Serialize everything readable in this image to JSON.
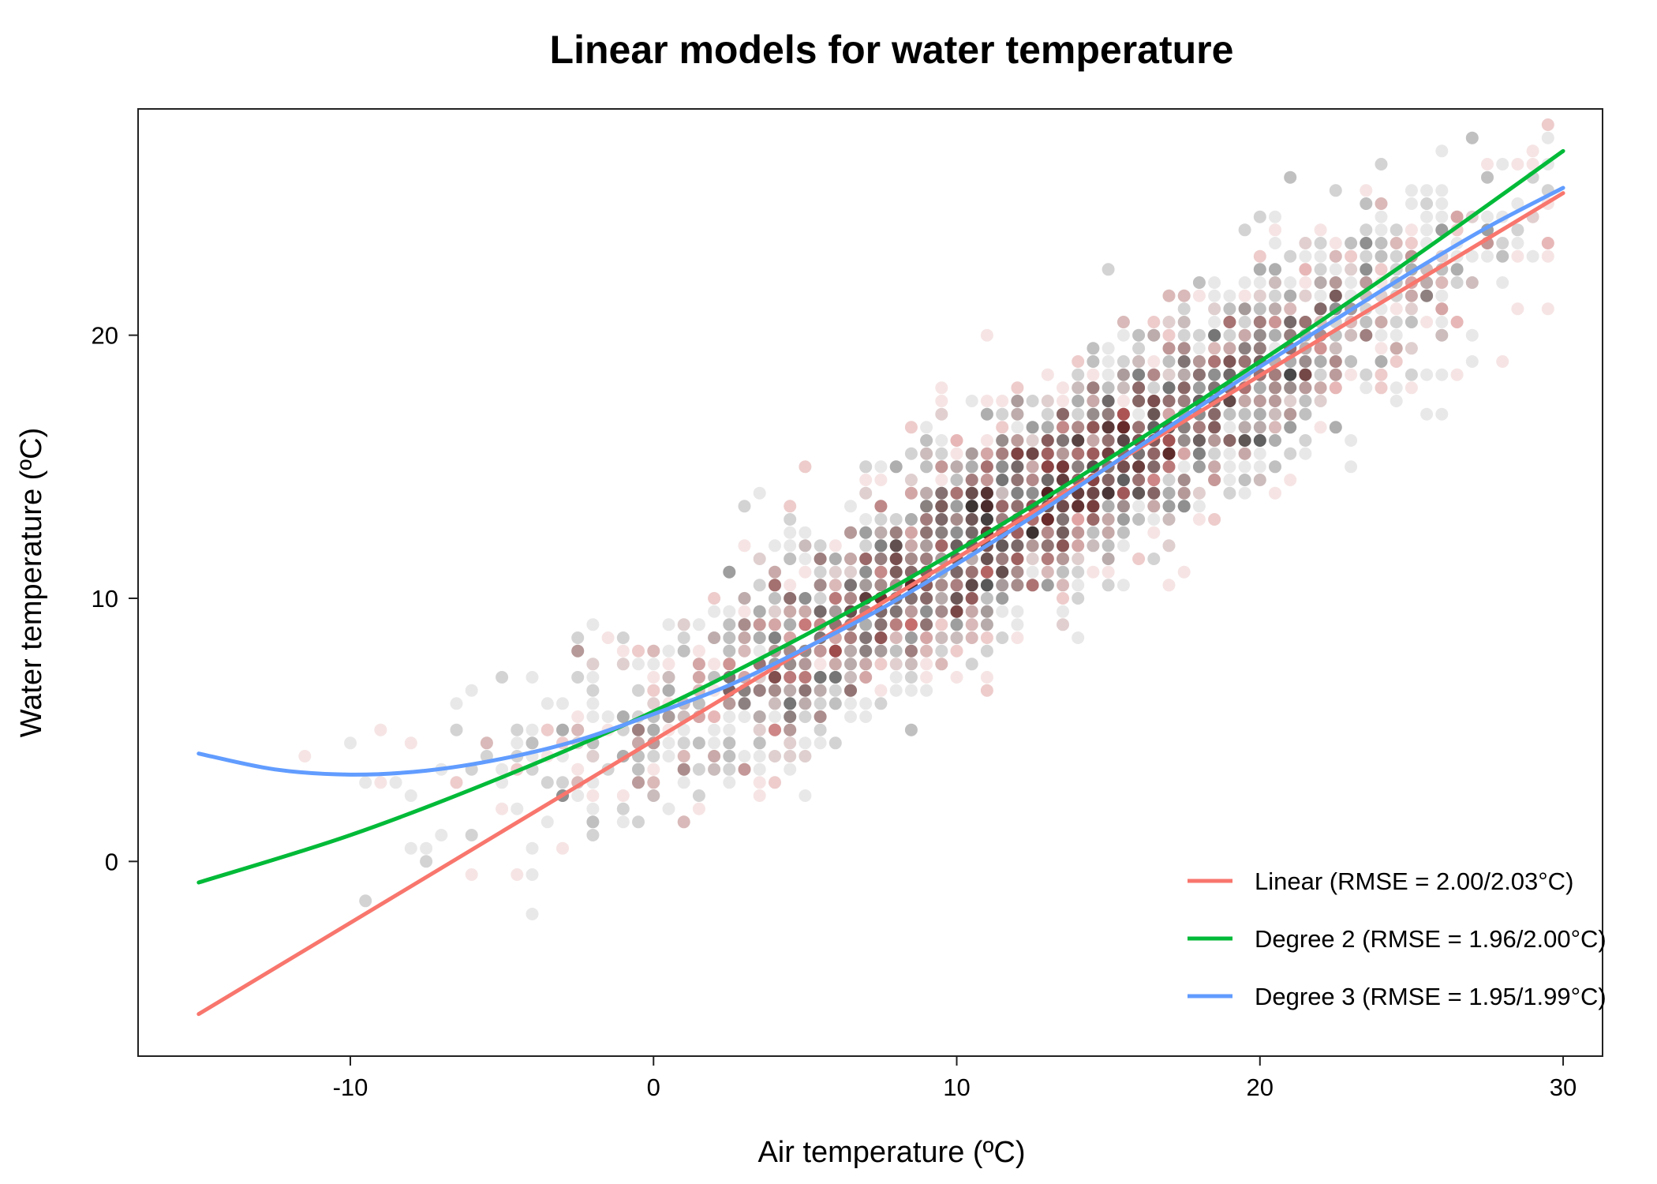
{
  "chart_data": {
    "type": "scatter",
    "title": "Linear models for water temperature",
    "xlabel": "Air temperature (ºC)",
    "ylabel": "Water temperature (ºC)",
    "xlim": [
      -17,
      31.3
    ],
    "ylim": [
      -7.4,
      28.6
    ],
    "xticks": [
      -10,
      0,
      10,
      20,
      30
    ],
    "yticks": [
      0,
      10,
      20
    ],
    "xtick_labels": [
      "-10",
      "0",
      "10",
      "20",
      "30"
    ],
    "ytick_labels": [
      "0",
      "10",
      "20"
    ],
    "grid": false,
    "legend_position": "bottom-right",
    "scatter": {
      "description_colors": {
        "train": "#000000",
        "test": "#b22222"
      },
      "x_range": [
        -15,
        30
      ],
      "trend": {
        "slope": 0.7,
        "intercept": 4.7,
        "spread": 2.0
      },
      "count_visible_approx": 4200
    },
    "series": [
      {
        "name": "Linear (RMSE = 2.00/2.03°C)",
        "color": "#F8766D",
        "x": [
          -15,
          30
        ],
        "y": [
          -5.8,
          25.4
        ]
      },
      {
        "name": "Degree 2 (RMSE = 1.96/2.00°C)",
        "color": "#00BA38",
        "x": [
          -15,
          -10,
          -5,
          0,
          5,
          10,
          15,
          20,
          25,
          30
        ],
        "y": [
          -0.8,
          1.0,
          3.2,
          5.7,
          8.6,
          11.8,
          15.3,
          19.0,
          22.9,
          27.0
        ]
      },
      {
        "name": "Degree 3 (RMSE = 1.95/1.99°C)",
        "color": "#619CFF",
        "x": [
          -15,
          -12.5,
          -10,
          -7.5,
          -5,
          -2.5,
          0,
          2.5,
          5,
          7.5,
          10,
          12.5,
          15,
          17.5,
          20,
          22.5,
          25,
          27.5,
          30
        ],
        "y": [
          4.1,
          3.5,
          3.3,
          3.45,
          3.9,
          4.6,
          5.6,
          6.7,
          8.1,
          9.6,
          11.3,
          13.1,
          15.0,
          16.9,
          18.8,
          20.6,
          22.4,
          24.1,
          25.6
        ]
      }
    ]
  }
}
